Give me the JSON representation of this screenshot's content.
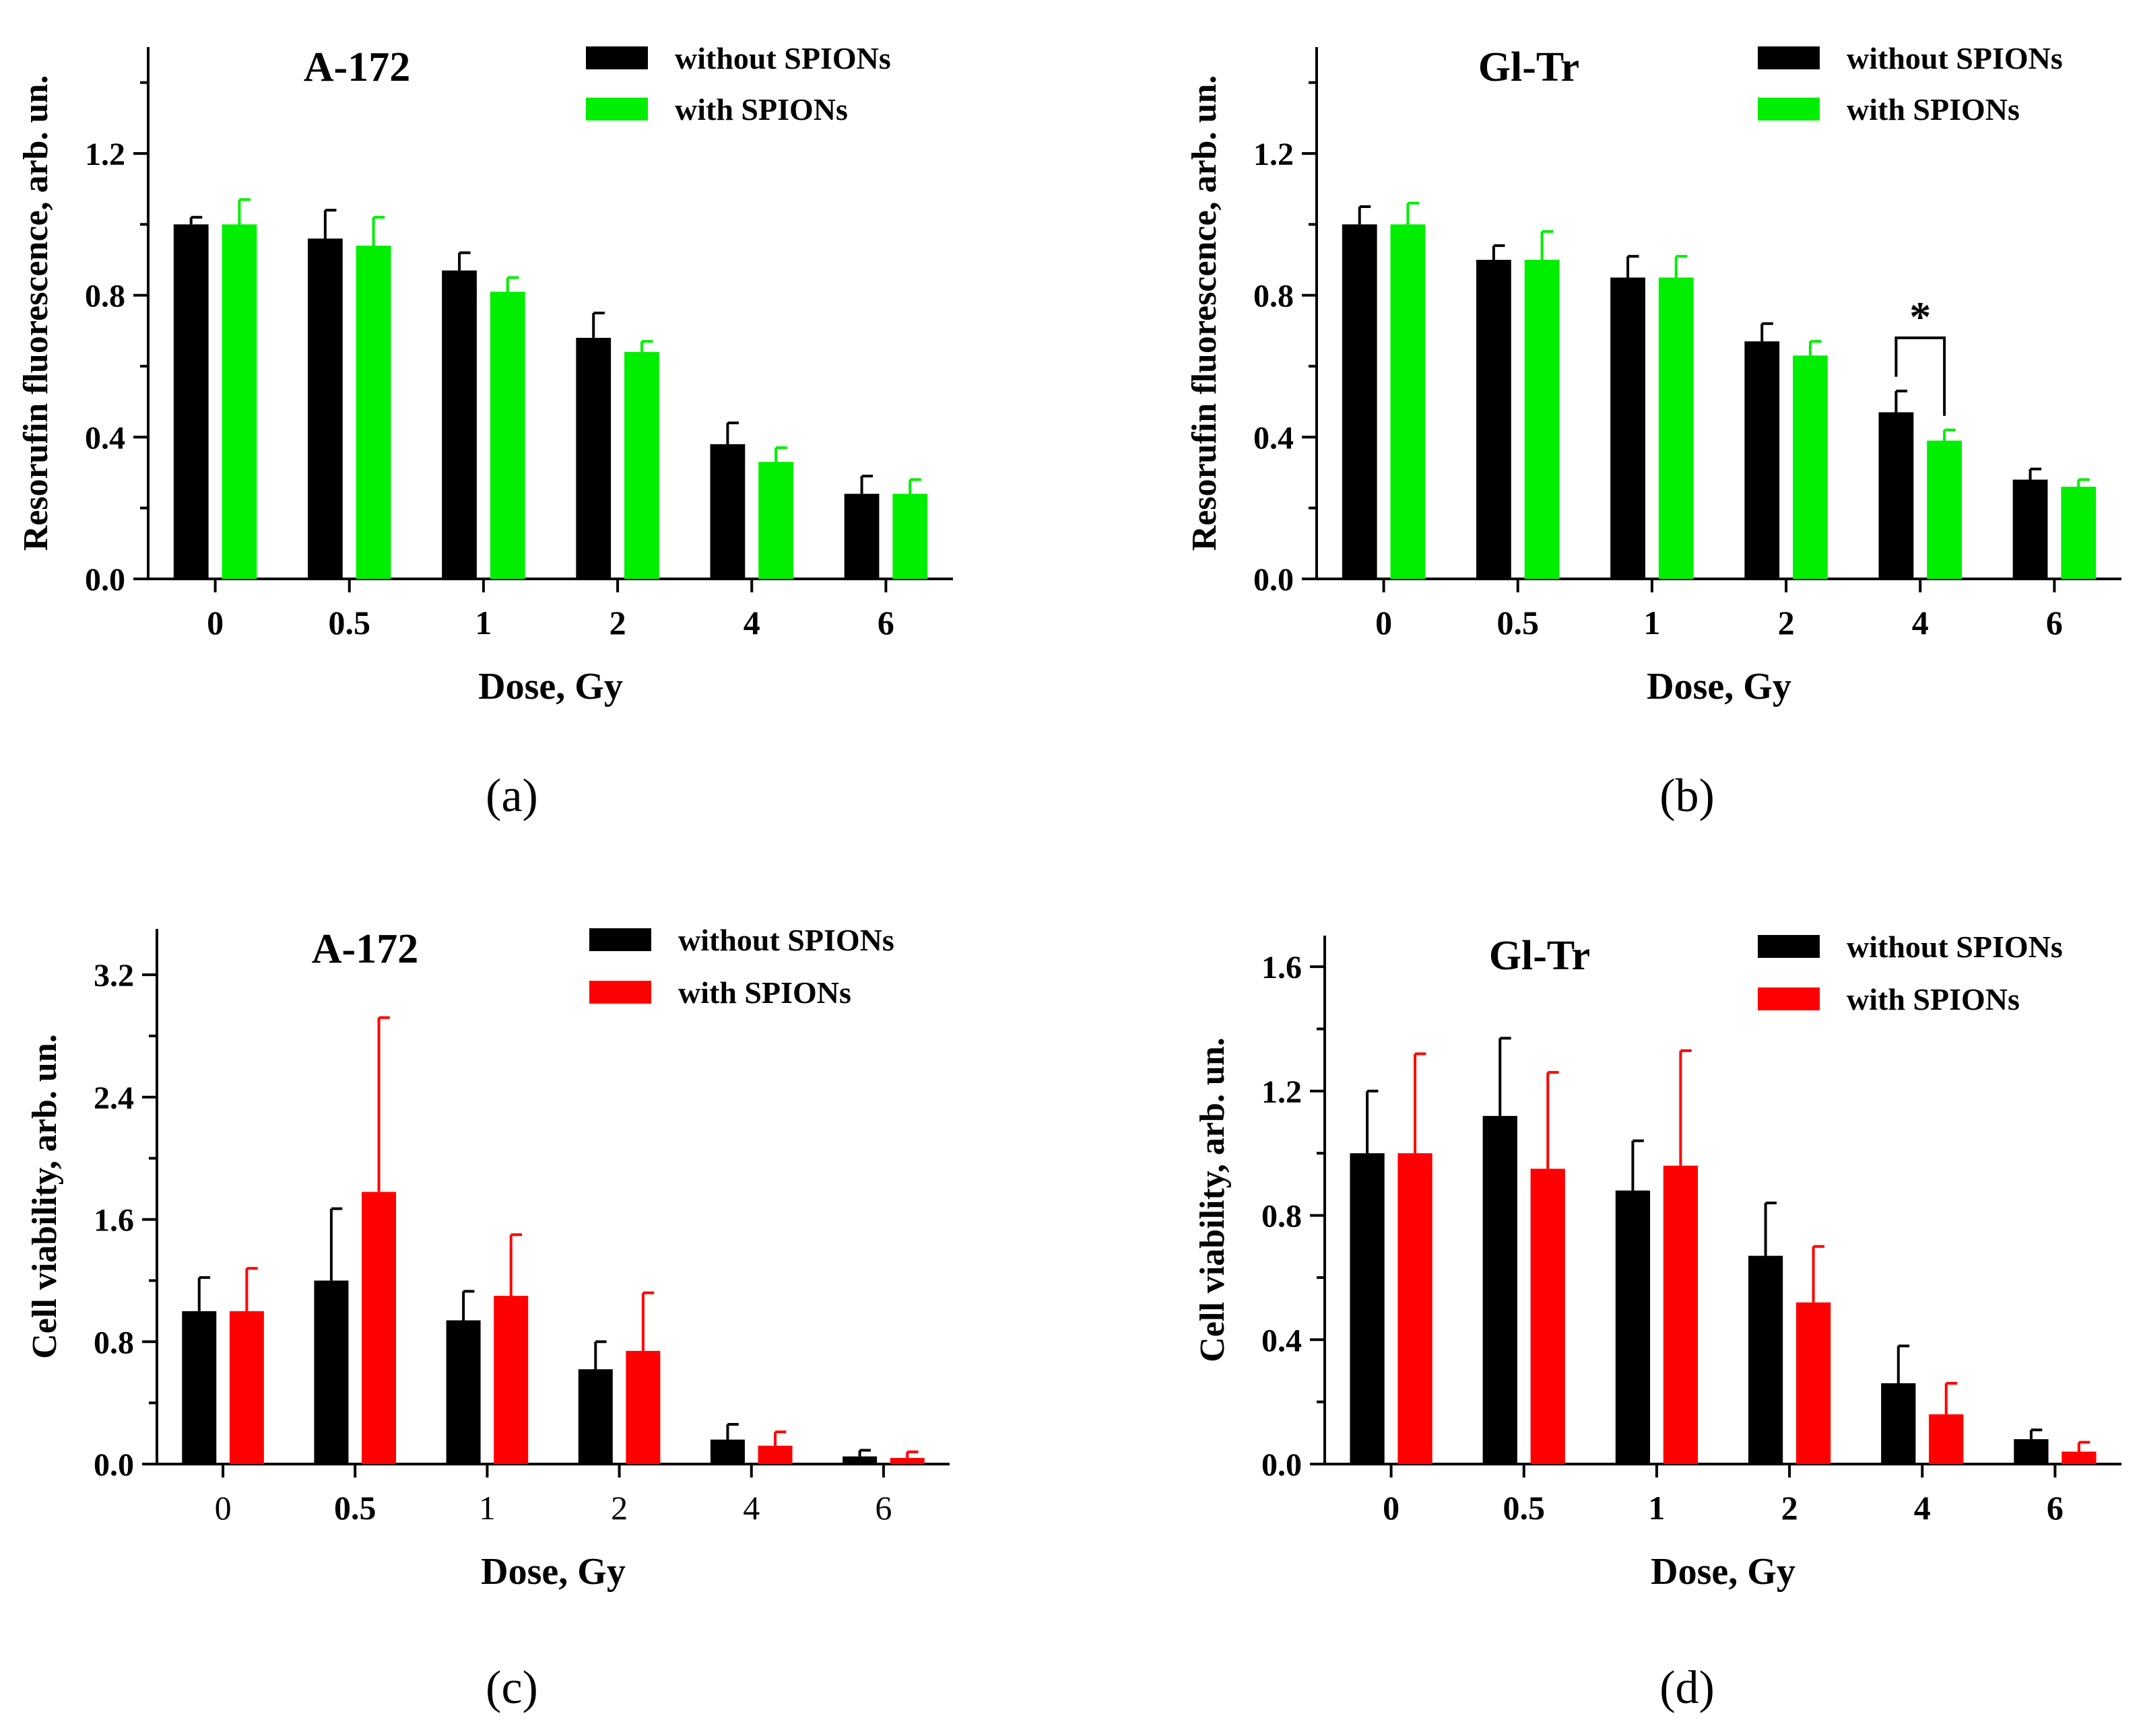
{
  "colors": {
    "without": "#000000",
    "green": "#00ee00",
    "red": "#ff0000",
    "axis": "#000000"
  },
  "chart_data": [
    {
      "panel_label": "(a)",
      "type": "bar",
      "title": "A-172",
      "xlabel": "Dose, Gy",
      "ylabel": "Resorufin fluorescence, arb. un.",
      "categories": [
        "0",
        "0.5",
        "1",
        "2",
        "4",
        "6"
      ],
      "ylim": [
        0,
        1.5
      ],
      "yticks": [
        0.0,
        0.4,
        0.8,
        1.2
      ],
      "ytick_labels": [
        "0.0",
        "0.4",
        "0.8",
        "1.2"
      ],
      "series": [
        {
          "name": "without SPIONs",
          "color_key": "without",
          "values": [
            1.0,
            0.96,
            0.87,
            0.68,
            0.38,
            0.24
          ],
          "errors": [
            0.02,
            0.08,
            0.05,
            0.07,
            0.06,
            0.05
          ]
        },
        {
          "name": "with SPIONs",
          "color_key": "green",
          "values": [
            1.0,
            0.94,
            0.81,
            0.64,
            0.33,
            0.24
          ],
          "errors": [
            0.07,
            0.08,
            0.04,
            0.03,
            0.04,
            0.04
          ]
        }
      ],
      "annotation": null
    },
    {
      "panel_label": "(b)",
      "type": "bar",
      "title": "Gl-Tr",
      "xlabel": "Dose, Gy",
      "ylabel": "Resorufin fluorescence, arb. un.",
      "categories": [
        "0",
        "0.5",
        "1",
        "2",
        "4",
        "6"
      ],
      "ylim": [
        0,
        1.5
      ],
      "yticks": [
        0.0,
        0.4,
        0.8,
        1.2
      ],
      "ytick_labels": [
        "0.0",
        "0.4",
        "0.8",
        "1.2"
      ],
      "series": [
        {
          "name": "without SPIONs",
          "color_key": "without",
          "values": [
            1.0,
            0.9,
            0.85,
            0.67,
            0.47,
            0.28
          ],
          "errors": [
            0.05,
            0.04,
            0.06,
            0.05,
            0.06,
            0.03
          ]
        },
        {
          "name": "with SPIONs",
          "color_key": "green",
          "values": [
            1.0,
            0.9,
            0.85,
            0.63,
            0.39,
            0.26
          ],
          "errors": [
            0.06,
            0.08,
            0.06,
            0.04,
            0.03,
            0.02
          ]
        }
      ],
      "annotation": {
        "text": "*",
        "category_index": 4,
        "y": 0.68
      }
    },
    {
      "panel_label": "(c)",
      "type": "bar",
      "title": "A-172",
      "xlabel": "Dose, Gy",
      "ylabel": "Cell viability, arb. un.",
      "categories": [
        "0",
        "0.5",
        "1",
        "2",
        "4",
        "6"
      ],
      "ylim": [
        0,
        3.5
      ],
      "yticks": [
        0.0,
        0.8,
        1.6,
        2.4,
        3.2
      ],
      "ytick_labels": [
        "0.0",
        "0.8",
        "1.6",
        "2.4",
        "3.2"
      ],
      "series": [
        {
          "name": "without SPIONs",
          "color_key": "without",
          "values": [
            1.0,
            1.2,
            0.94,
            0.62,
            0.16,
            0.05
          ],
          "errors": [
            0.22,
            0.47,
            0.19,
            0.18,
            0.1,
            0.04
          ]
        },
        {
          "name": "with SPIONs",
          "color_key": "red",
          "values": [
            1.0,
            1.78,
            1.1,
            0.74,
            0.12,
            0.04
          ],
          "errors": [
            0.28,
            1.14,
            0.4,
            0.38,
            0.09,
            0.04
          ]
        }
      ],
      "annotation": null
    },
    {
      "panel_label": "(d)",
      "type": "bar",
      "title": "Gl-Tr",
      "xlabel": "Dose, Gy",
      "ylabel": "Cell viability, arb. un.",
      "categories": [
        "0",
        "0.5",
        "1",
        "2",
        "4",
        "6"
      ],
      "ylim": [
        0,
        1.7
      ],
      "yticks": [
        0.0,
        0.4,
        0.8,
        1.2,
        1.6
      ],
      "ytick_labels": [
        "0.0",
        "0.4",
        "0.8",
        "1.2",
        "1.6"
      ],
      "series": [
        {
          "name": "without SPIONs",
          "color_key": "without",
          "values": [
            1.0,
            1.12,
            0.88,
            0.67,
            0.26,
            0.08
          ],
          "errors": [
            0.2,
            0.25,
            0.16,
            0.17,
            0.12,
            0.03
          ]
        },
        {
          "name": "with SPIONs",
          "color_key": "red",
          "values": [
            1.0,
            0.95,
            0.96,
            0.52,
            0.16,
            0.04
          ],
          "errors": [
            0.32,
            0.31,
            0.37,
            0.18,
            0.1,
            0.03
          ]
        }
      ],
      "annotation": null
    }
  ]
}
